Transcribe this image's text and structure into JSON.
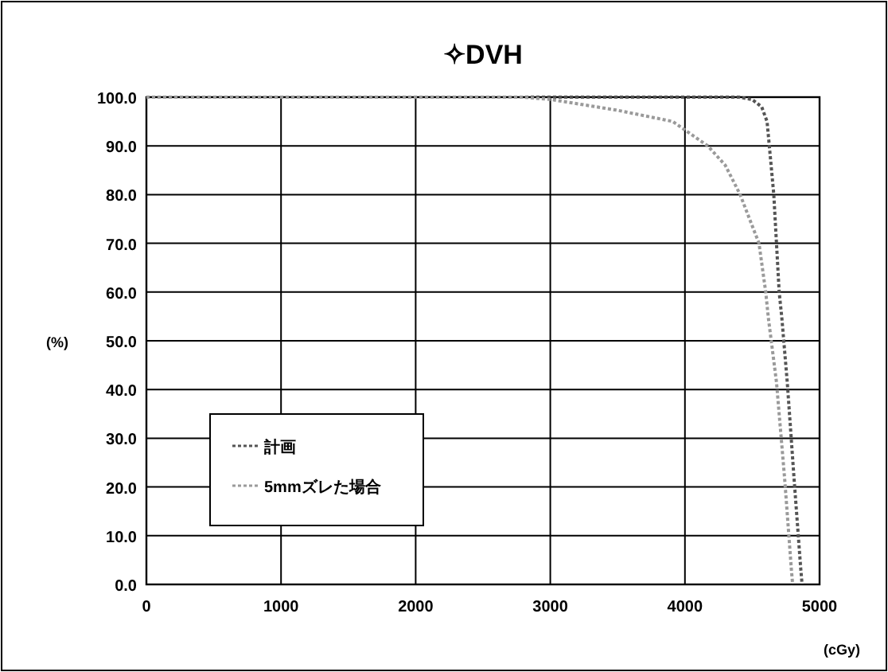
{
  "chart_data": {
    "type": "line",
    "title": "✧DVH",
    "xlabel": "(cGy)",
    "ylabel": "(%)",
    "xlim": [
      0,
      5000
    ],
    "xticks": [
      0,
      1000,
      2000,
      3000,
      4000,
      5000
    ],
    "ylim": [
      0,
      100
    ],
    "yticks": [
      {
        "value": 0,
        "label": "0.0"
      },
      {
        "value": 10,
        "label": "10.0"
      },
      {
        "value": 20,
        "label": "20.0"
      },
      {
        "value": 30,
        "label": "30.0"
      },
      {
        "value": 40,
        "label": "40.0"
      },
      {
        "value": 50,
        "label": "50.0"
      },
      {
        "value": 60,
        "label": "60.0"
      },
      {
        "value": 70,
        "label": "70.0"
      },
      {
        "value": 80,
        "label": "80.0"
      },
      {
        "value": 90,
        "label": "90.0"
      },
      {
        "value": 100,
        "label": "100.0"
      }
    ],
    "grid": true,
    "legend": "bottom left",
    "line_style": "dotted",
    "marker": "none",
    "series": [
      {
        "name": "計画",
        "color": "#555555",
        "x": [
          0,
          4400,
          4500,
          4570,
          4610,
          4660,
          4680,
          4700,
          4720,
          4760,
          4810,
          4860,
          4870
        ],
        "values": [
          100,
          100,
          99.5,
          98,
          95,
          80,
          70,
          60,
          54.6,
          41.5,
          21.9,
          3.3,
          0
        ]
      },
      {
        "name": "5mmズレた場合",
        "color": "#9a9a9a",
        "x": [
          0,
          2800,
          3010,
          3500,
          3910,
          4170,
          4300,
          4410,
          4550,
          4600,
          4620,
          4680,
          4740,
          4790,
          4800
        ],
        "values": [
          100,
          100,
          99.5,
          97.3,
          95,
          90,
          86,
          80,
          70,
          60,
          54.6,
          41.5,
          21.9,
          3.3,
          0
        ]
      }
    ]
  }
}
